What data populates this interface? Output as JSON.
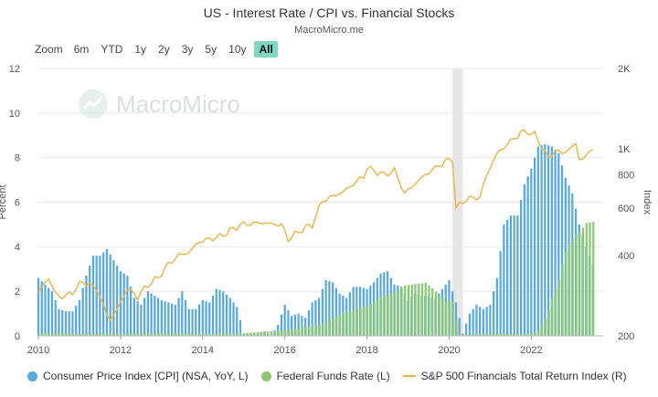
{
  "header": {
    "title": "US - Interest Rate / CPI vs. Financial Stocks",
    "subtitle": "MacroMicro.me"
  },
  "zoom": {
    "label": "Zoom",
    "options": [
      "6m",
      "YTD",
      "1y",
      "2y",
      "3y",
      "5y",
      "10y",
      "All"
    ],
    "active": "All"
  },
  "watermark": {
    "text": "MacroMicro"
  },
  "colors": {
    "cpi": "#5aa9dc",
    "ffr": "#8cc776",
    "sp": "#e8b44a",
    "recession": "#e6e6e6"
  },
  "chart_data": {
    "type": "bar",
    "x_ticks": [
      "2010",
      "2012",
      "2014",
      "2016",
      "2018",
      "2020",
      "2022"
    ],
    "y_left": {
      "label": "Percent",
      "range": [
        0,
        12
      ],
      "ticks": [
        0,
        2,
        4,
        6,
        8,
        10,
        12
      ]
    },
    "y_right": {
      "label": "Index",
      "scale": "log",
      "range": [
        200,
        2000
      ],
      "ticks": [
        200,
        400,
        600,
        800,
        1000,
        2000
      ],
      "tick_labels": [
        "200",
        "400",
        "600",
        "800",
        "1K",
        "2K"
      ]
    },
    "shaded_period": [
      "2020-02",
      "2020-04"
    ],
    "series": [
      {
        "name": "Consumer Price Index [CPI] (NSA, YoY, L)",
        "type": "bar",
        "axis": "left",
        "points": [
          [
            "2010-01",
            2.6
          ],
          [
            "2010-03",
            2.3
          ],
          [
            "2010-05",
            2.0
          ],
          [
            "2010-07",
            1.2
          ],
          [
            "2010-09",
            1.1
          ],
          [
            "2010-11",
            1.1
          ],
          [
            "2011-01",
            1.6
          ],
          [
            "2011-03",
            2.7
          ],
          [
            "2011-05",
            3.6
          ],
          [
            "2011-07",
            3.6
          ],
          [
            "2011-09",
            3.9
          ],
          [
            "2011-11",
            3.4
          ],
          [
            "2012-01",
            2.9
          ],
          [
            "2012-03",
            2.7
          ],
          [
            "2012-05",
            1.7
          ],
          [
            "2012-07",
            1.4
          ],
          [
            "2012-09",
            2.0
          ],
          [
            "2012-11",
            1.8
          ],
          [
            "2013-01",
            1.6
          ],
          [
            "2013-03",
            1.5
          ],
          [
            "2013-05",
            1.4
          ],
          [
            "2013-07",
            2.0
          ],
          [
            "2013-09",
            1.2
          ],
          [
            "2013-11",
            1.2
          ],
          [
            "2014-01",
            1.6
          ],
          [
            "2014-03",
            1.5
          ],
          [
            "2014-05",
            2.1
          ],
          [
            "2014-07",
            2.0
          ],
          [
            "2014-09",
            1.7
          ],
          [
            "2014-11",
            1.3
          ],
          [
            "2015-01",
            0.1
          ],
          [
            "2015-03",
            0.1
          ],
          [
            "2015-05",
            0.1
          ],
          [
            "2015-07",
            0.2
          ],
          [
            "2015-09",
            0.0
          ],
          [
            "2015-11",
            0.5
          ],
          [
            "2016-01",
            1.4
          ],
          [
            "2016-03",
            0.9
          ],
          [
            "2016-05",
            1.0
          ],
          [
            "2016-07",
            0.8
          ],
          [
            "2016-09",
            1.5
          ],
          [
            "2016-11",
            1.7
          ],
          [
            "2017-01",
            2.5
          ],
          [
            "2017-03",
            2.4
          ],
          [
            "2017-05",
            1.9
          ],
          [
            "2017-07",
            1.7
          ],
          [
            "2017-09",
            2.2
          ],
          [
            "2017-11",
            2.2
          ],
          [
            "2018-01",
            2.1
          ],
          [
            "2018-03",
            2.4
          ],
          [
            "2018-05",
            2.8
          ],
          [
            "2018-07",
            2.9
          ],
          [
            "2018-09",
            2.3
          ],
          [
            "2018-11",
            2.2
          ],
          [
            "2019-01",
            1.6
          ],
          [
            "2019-03",
            1.9
          ],
          [
            "2019-05",
            1.8
          ],
          [
            "2019-07",
            1.8
          ],
          [
            "2019-09",
            1.7
          ],
          [
            "2019-11",
            2.1
          ],
          [
            "2020-01",
            2.5
          ],
          [
            "2020-03",
            1.5
          ],
          [
            "2020-05",
            0.1
          ],
          [
            "2020-07",
            1.0
          ],
          [
            "2020-09",
            1.4
          ],
          [
            "2020-11",
            1.2
          ],
          [
            "2021-01",
            1.4
          ],
          [
            "2021-03",
            2.6
          ],
          [
            "2021-05",
            5.0
          ],
          [
            "2021-07",
            5.4
          ],
          [
            "2021-09",
            5.4
          ],
          [
            "2021-11",
            6.8
          ],
          [
            "2022-01",
            7.5
          ],
          [
            "2022-03",
            8.5
          ],
          [
            "2022-05",
            8.6
          ],
          [
            "2022-07",
            8.5
          ],
          [
            "2022-09",
            8.2
          ],
          [
            "2022-11",
            7.1
          ],
          [
            "2023-01",
            6.4
          ],
          [
            "2023-03",
            5.0
          ],
          [
            "2023-05",
            4.0
          ],
          [
            "2023-07",
            3.2
          ]
        ]
      },
      {
        "name": "Federal Funds Rate (L)",
        "type": "bar",
        "axis": "left",
        "points": [
          [
            "2010-01",
            0.12
          ],
          [
            "2011-01",
            0.1
          ],
          [
            "2012-01",
            0.1
          ],
          [
            "2013-01",
            0.12
          ],
          [
            "2014-01",
            0.09
          ],
          [
            "2015-01",
            0.12
          ],
          [
            "2015-12",
            0.24
          ],
          [
            "2016-06",
            0.38
          ],
          [
            "2016-12",
            0.54
          ],
          [
            "2017-03",
            0.79
          ],
          [
            "2017-06",
            1.04
          ],
          [
            "2017-12",
            1.3
          ],
          [
            "2018-03",
            1.51
          ],
          [
            "2018-06",
            1.82
          ],
          [
            "2018-09",
            1.95
          ],
          [
            "2018-12",
            2.27
          ],
          [
            "2019-06",
            2.38
          ],
          [
            "2019-08",
            2.13
          ],
          [
            "2019-10",
            1.83
          ],
          [
            "2019-12",
            1.55
          ],
          [
            "2020-02",
            1.58
          ],
          [
            "2020-03",
            0.65
          ],
          [
            "2020-04",
            0.05
          ],
          [
            "2021-01",
            0.08
          ],
          [
            "2022-01",
            0.08
          ],
          [
            "2022-03",
            0.2
          ],
          [
            "2022-05",
            0.77
          ],
          [
            "2022-06",
            1.21
          ],
          [
            "2022-07",
            1.68
          ],
          [
            "2022-09",
            2.56
          ],
          [
            "2022-11",
            3.78
          ],
          [
            "2022-12",
            4.1
          ],
          [
            "2023-02",
            4.57
          ],
          [
            "2023-03",
            4.65
          ],
          [
            "2023-05",
            5.06
          ],
          [
            "2023-07",
            5.12
          ]
        ]
      },
      {
        "name": "S&P 500 Financials Total Return Index (R)",
        "type": "line",
        "axis": "right",
        "points": [
          [
            "2010-01",
            290
          ],
          [
            "2010-04",
            330
          ],
          [
            "2010-06",
            285
          ],
          [
            "2010-09",
            280
          ],
          [
            "2010-12",
            300
          ],
          [
            "2011-02",
            320
          ],
          [
            "2011-06",
            300
          ],
          [
            "2011-09",
            240
          ],
          [
            "2011-10",
            230
          ],
          [
            "2011-12",
            250
          ],
          [
            "2012-03",
            300
          ],
          [
            "2012-06",
            280
          ],
          [
            "2012-09",
            310
          ],
          [
            "2012-12",
            330
          ],
          [
            "2013-03",
            370
          ],
          [
            "2013-06",
            400
          ],
          [
            "2013-09",
            410
          ],
          [
            "2013-12",
            450
          ],
          [
            "2014-06",
            470
          ],
          [
            "2014-12",
            520
          ],
          [
            "2015-06",
            530
          ],
          [
            "2015-12",
            520
          ],
          [
            "2016-02",
            460
          ],
          [
            "2016-06",
            500
          ],
          [
            "2016-09",
            520
          ],
          [
            "2016-12",
            640
          ],
          [
            "2017-06",
            690
          ],
          [
            "2017-12",
            790
          ],
          [
            "2018-01",
            850
          ],
          [
            "2018-06",
            800
          ],
          [
            "2018-09",
            830
          ],
          [
            "2018-12",
            680
          ],
          [
            "2019-06",
            800
          ],
          [
            "2019-12",
            900
          ],
          [
            "2020-02",
            920
          ],
          [
            "2020-03",
            600
          ],
          [
            "2020-06",
            650
          ],
          [
            "2020-10",
            660
          ],
          [
            "2020-12",
            800
          ],
          [
            "2021-03",
            960
          ],
          [
            "2021-06",
            1040
          ],
          [
            "2021-10",
            1150
          ],
          [
            "2021-12",
            1160
          ],
          [
            "2022-02",
            1130
          ],
          [
            "2022-06",
            920
          ],
          [
            "2022-08",
            990
          ],
          [
            "2022-10",
            960
          ],
          [
            "2022-12",
            1000
          ],
          [
            "2023-02",
            1040
          ],
          [
            "2023-03",
            920
          ],
          [
            "2023-05",
            930
          ],
          [
            "2023-07",
            1020
          ]
        ]
      }
    ]
  },
  "legend": [
    {
      "label": "Consumer Price Index [CPI] (NSA, YoY, L)",
      "kind": "dot",
      "color": "#5aa9dc"
    },
    {
      "label": "Federal Funds Rate (L)",
      "kind": "dot",
      "color": "#8cc776"
    },
    {
      "label": "S&P 500 Financials Total Return Index (R)",
      "kind": "line",
      "color": "#e8b44a"
    }
  ]
}
